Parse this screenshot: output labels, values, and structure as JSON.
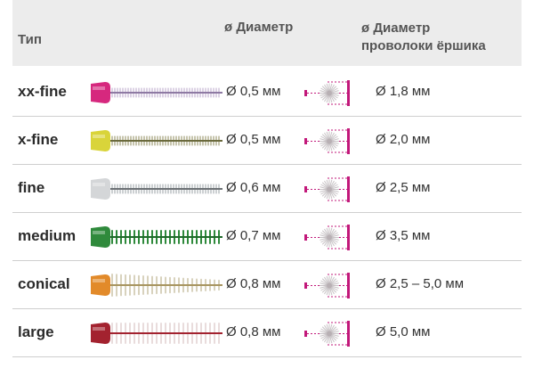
{
  "header": {
    "type_label": "Тип",
    "diameter_label": "ø Диаметр",
    "wire_diameter_line1": "ø Диаметр",
    "wire_diameter_line2": "проволоки ёршика"
  },
  "rows": [
    {
      "name": "xx-fine",
      "diameter": "Ø 0,5 мм",
      "wire_diameter": "Ø 1,8 мм",
      "handle_color": "#d6287e",
      "bristle_color": "#b9a6c9",
      "core_color": "#8e7aa3",
      "style": "thin"
    },
    {
      "name": "x-fine",
      "diameter": "Ø 0,5 мм",
      "wire_diameter": "Ø 2,0 мм",
      "handle_color": "#d9d43a",
      "bristle_color": "#8d8a5a",
      "core_color": "#6b6a3d",
      "style": "thin"
    },
    {
      "name": "fine",
      "diameter": "Ø 0,6 мм",
      "wire_diameter": "Ø 2,5 мм",
      "handle_color": "#d4d6d8",
      "bristle_color": "#9aa0a4",
      "core_color": "#6d7276",
      "style": "thin"
    },
    {
      "name": "medium",
      "diameter": "Ø 0,7 мм",
      "wire_diameter": "Ø 3,5 мм",
      "handle_color": "#2f8a3c",
      "bristle_color": "#2f8a3c",
      "core_color": "#1f6a2a",
      "style": "medium"
    },
    {
      "name": "conical",
      "diameter": "Ø 0,8 мм",
      "wire_diameter": "Ø 2,5 – 5,0 мм",
      "handle_color": "#e28a2a",
      "bristle_color": "#d8d2bd",
      "core_color": "#a89560",
      "style": "conical"
    },
    {
      "name": "large",
      "diameter": "Ø 0,8 мм",
      "wire_diameter": "Ø 5,0 мм",
      "handle_color": "#a3222f",
      "bristle_color": "#e9dcdc",
      "core_color": "#a3222f",
      "style": "large"
    }
  ],
  "accent_color": "#c2187a"
}
